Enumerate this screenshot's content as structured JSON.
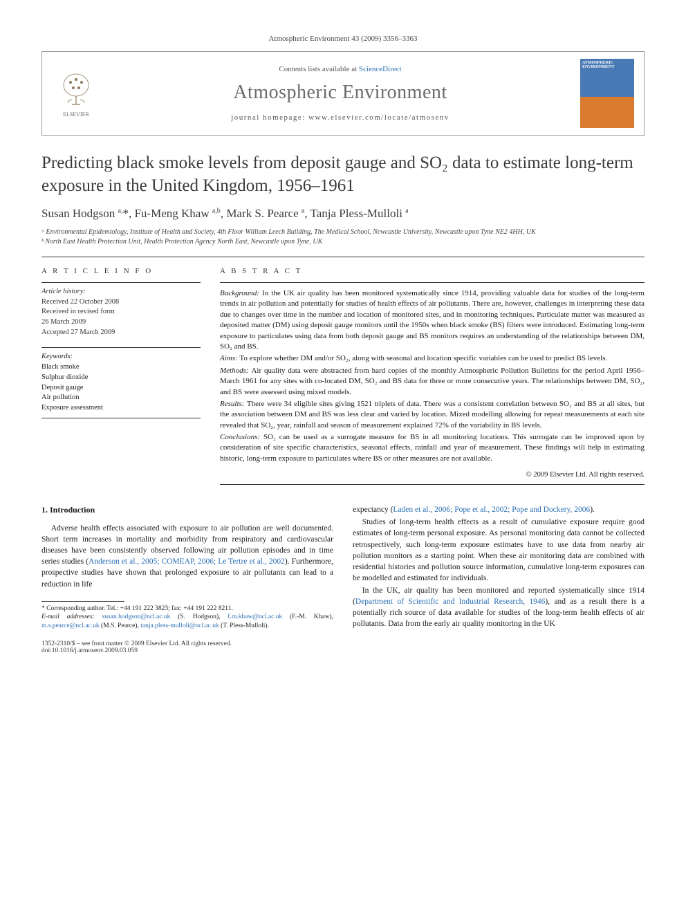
{
  "header": {
    "citation": "Atmospheric Environment 43 (2009) 3356–3363",
    "contents_prefix": "Contents lists available at ",
    "contents_link": "ScienceDirect",
    "journal": "Atmospheric Environment",
    "homepage_prefix": "journal homepage: ",
    "homepage": "www.elsevier.com/locate/atmosenv",
    "publisher": "ELSEVIER",
    "cover_label_top": "ATMOSPHERIC",
    "cover_label_bottom": "ENVIRONMENT"
  },
  "article": {
    "title": "Predicting black smoke levels from deposit gauge and SO₂ data to estimate long-term exposure in the United Kingdom, 1956–1961",
    "authors_html": "Susan Hodgson <sup>a,</sup>*, Fu-Meng Khaw <sup>a,b</sup>, Mark S. Pearce <sup>a</sup>, Tanja Pless-Mulloli <sup>a</sup>",
    "affiliations": [
      "ᵃ Environmental Epidemiology, Institute of Health and Society, 4th Floor William Leech Building, The Medical School, Newcastle University, Newcastle upon Tyne NE2 4HH, UK",
      "ᵇ North East Health Protection Unit, Health Protection Agency North East, Newcastle upon Tyne, UK"
    ]
  },
  "info": {
    "label": "A R T I C L E   I N F O",
    "history_head": "Article history:",
    "history": [
      "Received 22 October 2008",
      "Received in revised form",
      "26 March 2009",
      "Accepted 27 March 2009"
    ],
    "keywords_head": "Keywords:",
    "keywords": [
      "Black smoke",
      "Sulphur dioxide",
      "Deposit gauge",
      "Air pollution",
      "Exposure assessment"
    ]
  },
  "abstract": {
    "label": "A B S T R A C T",
    "sections": [
      {
        "head": "Background:",
        "text": "In the UK air quality has been monitored systematically since 1914, providing valuable data for studies of the long-term trends in air pollution and potentially for studies of health effects of air pollutants. There are, however, challenges in interpreting these data due to changes over time in the number and location of monitored sites, and in monitoring techniques. Particulate matter was measured as deposited matter (DM) using deposit gauge monitors until the 1950s when black smoke (BS) filters were introduced. Estimating long-term exposure to particulates using data from both deposit gauge and BS monitors requires an understanding of the relationships between DM, SO₂ and BS."
      },
      {
        "head": "Aims:",
        "text": "To explore whether DM and/or SO₂, along with seasonal and location specific variables can be used to predict BS levels."
      },
      {
        "head": "Methods:",
        "text": "Air quality data were abstracted from hard copies of the monthly Atmospheric Pollution Bulletins for the period April 1956–March 1961 for any sites with co-located DM, SO₂ and BS data for three or more consecutive years. The relationships between DM, SO₂, and BS were assessed using mixed models."
      },
      {
        "head": "Results:",
        "text": "There were 34 eligible sites giving 1521 triplets of data. There was a consistent correlation between SO₂ and BS at all sites, but the association between DM and BS was less clear and varied by location. Mixed modelling allowing for repeat measurements at each site revealed that SO₂, year, rainfall and season of measurement explained 72% of the variability in BS levels."
      },
      {
        "head": "Conclusions:",
        "text": "SO₂ can be used as a surrogate measure for BS in all monitoring locations. This surrogate can be improved upon by consideration of site specific characteristics, seasonal effects, rainfall and year of measurement. These findings will help in estimating historic, long-term exposure to particulates where BS or other measures are not available."
      }
    ],
    "copyright": "© 2009 Elsevier Ltd. All rights reserved."
  },
  "body": {
    "section_num": "1.",
    "section_title": "Introduction",
    "col1": [
      "Adverse health effects associated with exposure to air pollution are well documented. Short term increases in mortality and morbidity from respiratory and cardiovascular diseases have been consistently observed following air pollution episodes and in time series studies (Anderson et al., 2005; COMEAP, 2006; Le Tertre et al., 2002). Furthermore, prospective studies have shown that prolonged exposure to air pollutants can lead to a reduction in life"
    ],
    "col2": [
      "expectancy (Laden et al., 2006; Pope et al., 2002; Pope and Dockery, 2006).",
      "Studies of long-term health effects as a result of cumulative exposure require good estimates of long-term personal exposure. As personal monitoring data cannot be collected retrospectively, such long-term exposure estimates have to use data from nearby air pollution monitors as a starting point. When these air monitoring data are combined with residential histories and pollution source information, cumulative long-term exposures can be modelled and estimated for individuals.",
      "In the UK, air quality has been monitored and reported systematically since 1914 (Department of Scientific and Industrial Research, 1946), and as a result there is a potentially rich source of data available for studies of the long-term health effects of air pollutants. Data from the early air quality monitoring in the UK"
    ]
  },
  "footnotes": {
    "corr": "* Corresponding author. Tel.: +44 191 222 3823; fax: +44 191 222 8211.",
    "email_label": "E-mail addresses:",
    "emails": [
      {
        "addr": "susan.hodgson@ncl.ac.uk",
        "who": "(S. Hodgson),"
      },
      {
        "addr": "f.m.khaw@ncl.ac.uk",
        "who": "(F.-M. Khaw),"
      },
      {
        "addr": "m.s.pearce@ncl.ac.uk",
        "who": "(M.S. Pearce),"
      },
      {
        "addr": "tanja.pless-mulloli@ncl.ac.uk",
        "who": "(T. Pless-Mulloli)."
      }
    ]
  },
  "footer": {
    "issn": "1352-2310/$ – see front matter © 2009 Elsevier Ltd. All rights reserved.",
    "doi": "doi:10.1016/j.atmosenv.2009.03.059"
  },
  "style": {
    "link_color": "#2a6fb5",
    "text_color": "#1a1a1a",
    "muted_color": "#555555",
    "border_color": "#333333",
    "cover_top_color": "#4a7ab5",
    "cover_bottom_color": "#d97a2e",
    "title_fontsize": 25,
    "author_fontsize": 17,
    "body_fontsize": 11.5,
    "abstract_fontsize": 11,
    "journal_name_fontsize": 28
  }
}
